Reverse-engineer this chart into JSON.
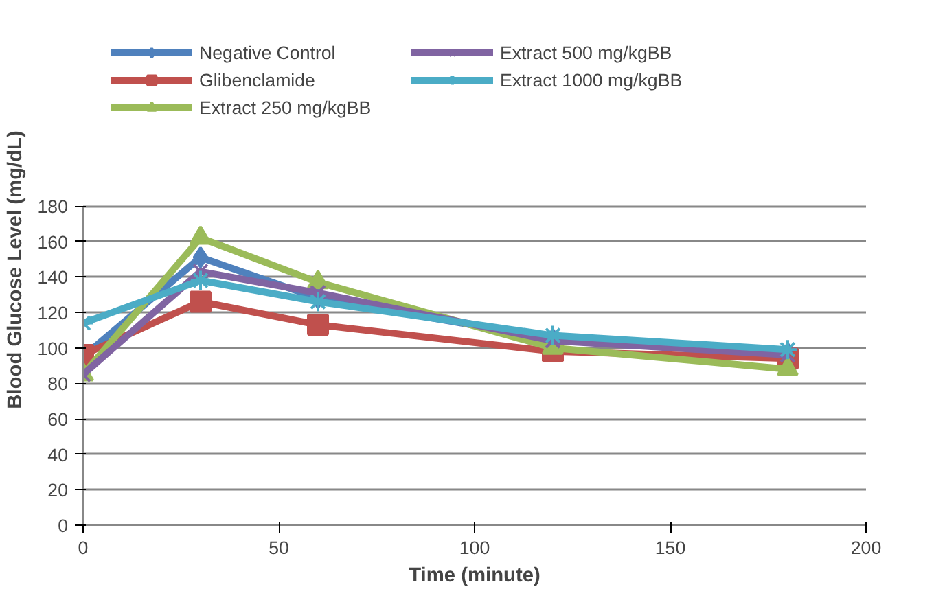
{
  "chart_data": {
    "type": "line",
    "xlabel": "Time (minute)",
    "ylabel": "Blood Glucose Level (mg/dL)",
    "x": [
      0,
      30,
      60,
      120,
      180
    ],
    "series": [
      {
        "name": "Negative Control",
        "color": "#4f81bd",
        "marker": "diamond",
        "values": [
          95,
          151,
          128,
          105,
          97
        ]
      },
      {
        "name": "Glibenclamide",
        "color": "#c0504d",
        "marker": "square",
        "values": [
          96,
          126,
          113,
          98,
          94
        ]
      },
      {
        "name": "Extract 250 mg/kgBB",
        "color": "#9bbb59",
        "marker": "triangle",
        "values": [
          85,
          162,
          137,
          100,
          88
        ]
      },
      {
        "name": "Extract 500 mg/kgBB",
        "color": "#8064a2",
        "marker": "x",
        "values": [
          85,
          143,
          131,
          104,
          96
        ]
      },
      {
        "name": "Extract 1000 mg/kgBB",
        "color": "#4bacc6",
        "marker": "cross",
        "values": [
          114,
          138,
          126,
          107,
          99
        ]
      }
    ],
    "xlim": [
      0,
      200
    ],
    "xticks": [
      0,
      50,
      100,
      150,
      200
    ],
    "ylim": [
      0,
      180
    ],
    "yticks": [
      0,
      20,
      40,
      60,
      80,
      100,
      120,
      140,
      160,
      180
    ],
    "grid": "y",
    "legend": "top",
    "line_style": "solid"
  }
}
